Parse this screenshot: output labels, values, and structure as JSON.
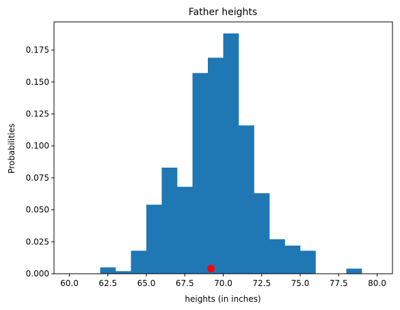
{
  "chart_data": {
    "type": "bar",
    "title": "Father heights",
    "xlabel": "heights (in inches)",
    "ylabel": "Probabilities",
    "xlim": [
      59.0,
      81.0
    ],
    "ylim": [
      0.0,
      0.197
    ],
    "xticks": [
      {
        "value": 60.0,
        "label": "60.0"
      },
      {
        "value": 62.5,
        "label": "62.5"
      },
      {
        "value": 65.0,
        "label": "65.0"
      },
      {
        "value": 67.5,
        "label": "67.5"
      },
      {
        "value": 70.0,
        "label": "70.0"
      },
      {
        "value": 72.5,
        "label": "72.5"
      },
      {
        "value": 75.0,
        "label": "75.0"
      },
      {
        "value": 77.5,
        "label": "77.5"
      },
      {
        "value": 80.0,
        "label": "80.0"
      }
    ],
    "yticks": [
      {
        "value": 0.0,
        "label": "0.000"
      },
      {
        "value": 0.025,
        "label": "0.025"
      },
      {
        "value": 0.05,
        "label": "0.050"
      },
      {
        "value": 0.075,
        "label": "0.075"
      },
      {
        "value": 0.1,
        "label": "0.100"
      },
      {
        "value": 0.125,
        "label": "0.125"
      },
      {
        "value": 0.15,
        "label": "0.150"
      },
      {
        "value": 0.175,
        "label": "0.175"
      }
    ],
    "bins": [
      {
        "x0": 60,
        "x1": 61,
        "value": 0.0
      },
      {
        "x0": 61,
        "x1": 62,
        "value": 0.0
      },
      {
        "x0": 62,
        "x1": 63,
        "value": 0.005
      },
      {
        "x0": 63,
        "x1": 64,
        "value": 0.002
      },
      {
        "x0": 64,
        "x1": 65,
        "value": 0.018
      },
      {
        "x0": 65,
        "x1": 66,
        "value": 0.054
      },
      {
        "x0": 66,
        "x1": 67,
        "value": 0.083
      },
      {
        "x0": 67,
        "x1": 68,
        "value": 0.068
      },
      {
        "x0": 68,
        "x1": 69,
        "value": 0.157
      },
      {
        "x0": 69,
        "x1": 70,
        "value": 0.169
      },
      {
        "x0": 70,
        "x1": 71,
        "value": 0.188
      },
      {
        "x0": 71,
        "x1": 72,
        "value": 0.116
      },
      {
        "x0": 72,
        "x1": 73,
        "value": 0.063
      },
      {
        "x0": 73,
        "x1": 74,
        "value": 0.027
      },
      {
        "x0": 74,
        "x1": 75,
        "value": 0.022
      },
      {
        "x0": 75,
        "x1": 76,
        "value": 0.018
      },
      {
        "x0": 76,
        "x1": 77,
        "value": 0.0
      },
      {
        "x0": 77,
        "x1": 78,
        "value": 0.0
      },
      {
        "x0": 78,
        "x1": 79,
        "value": 0.004
      },
      {
        "x0": 79,
        "x1": 80,
        "value": 0.0
      }
    ],
    "marker": {
      "x": 69.2,
      "y": 0.004
    },
    "colors": {
      "bar": "#1f77b4",
      "marker": "#ff0000"
    },
    "grid": false
  }
}
